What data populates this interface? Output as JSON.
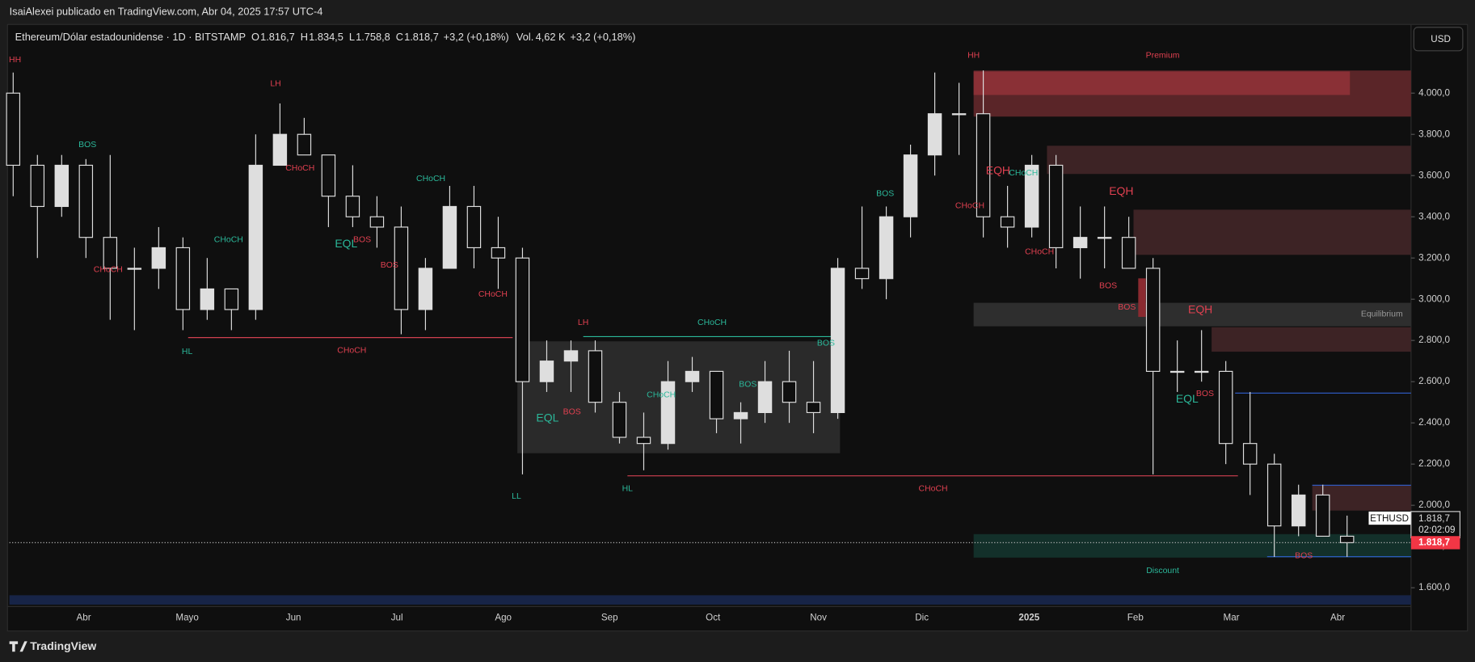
{
  "header": {
    "publisher": "IsaiAlexei publicado en TradingView.com, Abr 04, 2025 17:57 UTC-4",
    "brand": "TradingView"
  },
  "chart_data": {
    "type": "candlestick",
    "symbol": "Ethereum/Dólar estadounidense · 1D · BITSTAMP",
    "legend": [
      {
        "key": "O",
        "value": 1816.7,
        "label": "1.816,7"
      },
      {
        "key": "H",
        "value": 1834.5,
        "label": "1.834,5"
      },
      {
        "key": "L",
        "value": 1758.8,
        "label": "1.758,8"
      },
      {
        "key": "C",
        "value": 1818.7,
        "label": "1.818,7"
      }
    ],
    "change": {
      "value": 3.2,
      "label": "+3,2"
    },
    "change_pct": {
      "value": 0.18,
      "label": "(+0,18%)"
    },
    "volume": {
      "key": "Vol.",
      "value": 4620,
      "label": "4,62 K"
    },
    "volume_change": {
      "value": 3.2,
      "label": "+3,2"
    },
    "volume_change_pct": {
      "value": 0.18,
      "label": "(+0,18%)"
    },
    "currency": "USD",
    "ticker": "ETHUSD",
    "last_price": {
      "value": 1818.7,
      "label": "1.818,7"
    },
    "countdown": "02:02:09",
    "color": "#dedede",
    "categories": [
      "Abr",
      "Mayo",
      "Jun",
      "Jul",
      "Ago",
      "Sep",
      "Oct",
      "Nov",
      "Dic",
      "2025",
      "Feb",
      "Mar",
      "Abr"
    ],
    "open": [
      4000,
      3650,
      3450,
      3650,
      3300,
      3150,
      3150,
      3250,
      2950,
      3050,
      2950,
      3650,
      3800,
      3700,
      3500,
      3400,
      3350,
      2950,
      3150,
      3450,
      3250,
      3200,
      2600,
      2700,
      2750,
      2500,
      2330,
      2300,
      2600,
      2650,
      2420,
      2450,
      2600,
      2500,
      2450,
      3150,
      3100,
      3400,
      3700,
      3900,
      3900,
      3400,
      3350,
      3650,
      3250,
      3300,
      3300,
      3150,
      2650,
      2650,
      2650,
      2300,
      2200,
      1900,
      2050,
      1850
    ],
    "high": [
      4100,
      3700,
      3700,
      3680,
      3700,
      3250,
      3350,
      3300,
      3200,
      3050,
      3800,
      3950,
      3880,
      3700,
      3650,
      3500,
      3450,
      3200,
      3550,
      3550,
      3400,
      3250,
      2800,
      2800,
      2800,
      2550,
      2450,
      2700,
      2720,
      2650,
      2500,
      2700,
      2750,
      2700,
      3200,
      3450,
      3450,
      3750,
      4100,
      4050,
      4110,
      3550,
      3700,
      3700,
      3450,
      3450,
      3400,
      3200,
      2800,
      2850,
      2700,
      2550,
      2250,
      2100,
      2100,
      1950
    ],
    "low": [
      3500,
      3200,
      3400,
      3200,
      2900,
      2850,
      3050,
      2850,
      2900,
      2850,
      2900,
      3650,
      3700,
      3350,
      3350,
      3250,
      2830,
      2850,
      3150,
      3150,
      3050,
      2150,
      2550,
      2550,
      2450,
      2300,
      2170,
      2270,
      2550,
      2350,
      2300,
      2400,
      2400,
      2350,
      2420,
      3050,
      3000,
      3300,
      3600,
      3700,
      3300,
      3250,
      3300,
      3150,
      3100,
      3150,
      3150,
      2150,
      2550,
      2600,
      2200,
      2050,
      1750,
      1850,
      1850,
      1750
    ],
    "close": [
      3650,
      3450,
      3650,
      3300,
      3150,
      3150,
      3250,
      2950,
      3050,
      2950,
      3650,
      3800,
      3700,
      3500,
      3400,
      3350,
      2950,
      3150,
      3450,
      3250,
      3200,
      2600,
      2700,
      2750,
      2500,
      2330,
      2300,
      2600,
      2650,
      2420,
      2450,
      2600,
      2500,
      2450,
      3150,
      3100,
      3400,
      3700,
      3900,
      3900,
      3400,
      3350,
      3650,
      3250,
      3300,
      3300,
      3150,
      2650,
      2650,
      2650,
      2300,
      2200,
      1900,
      2050,
      1850,
      1818.7
    ],
    "ylim": [
      1404,
      4315
    ],
    "yticks": [
      {
        "value": 4000,
        "label": "4.000,0"
      },
      {
        "value": 3800,
        "label": "3.800,0"
      },
      {
        "value": 3600,
        "label": "3.600,0"
      },
      {
        "value": 3400,
        "label": "3.400,0"
      },
      {
        "value": 3200,
        "label": "3.200,0"
      },
      {
        "value": 3000,
        "label": "3.000,0"
      },
      {
        "value": 2800,
        "label": "2.800,0"
      },
      {
        "value": 2600,
        "label": "2.600,0"
      },
      {
        "value": 2400,
        "label": "2.400,0"
      },
      {
        "value": 2200,
        "label": "2.200,0"
      },
      {
        "value": 2000,
        "label": "2.000,0"
      },
      {
        "value": 1800,
        "label": "1.800,0"
      },
      {
        "value": 1600,
        "label": "1.600,0"
      }
    ],
    "annotations": [
      {
        "text": "HH",
        "color": "#e04050"
      },
      {
        "text": "LH",
        "color": "#e04050"
      },
      {
        "text": "BOS",
        "color": "#2bb89a"
      },
      {
        "text": "CHoCH",
        "color": "#e04050"
      },
      {
        "text": "CHoCH",
        "color": "#2bb89a"
      },
      {
        "text": "CHoCH",
        "color": "#2bb89a"
      },
      {
        "text": "EQL",
        "color": "#2bb89a"
      },
      {
        "text": "BOS",
        "color": "#e04050"
      },
      {
        "text": "BOS",
        "color": "#e04050"
      },
      {
        "text": "CHoCH",
        "color": "#e04050"
      },
      {
        "text": "CHoCH",
        "color": "#e04050"
      },
      {
        "text": "HL",
        "color": "#2bb89a"
      },
      {
        "text": "CHoCH",
        "color": "#e04050"
      },
      {
        "text": "LL",
        "color": "#2bb89a"
      },
      {
        "text": "LH",
        "color": "#e04050"
      },
      {
        "text": "CHoCH",
        "color": "#2bb89a"
      },
      {
        "text": "BOS",
        "color": "#2bb89a"
      },
      {
        "text": "EQL",
        "color": "#2bb89a"
      },
      {
        "text": "BOS",
        "color": "#e04050"
      },
      {
        "text": "CHoCH",
        "color": "#2bb89a"
      },
      {
        "text": "BOS",
        "color": "#2bb89a"
      },
      {
        "text": "HL",
        "color": "#2bb89a"
      },
      {
        "text": "CHoCH",
        "color": "#e04050"
      },
      {
        "text": "BOS",
        "color": "#2bb89a"
      },
      {
        "text": "HH",
        "color": "#e04050"
      },
      {
        "text": "Premium",
        "color": "#e04050"
      },
      {
        "text": "EQH",
        "color": "#e04050"
      },
      {
        "text": "CHoCH",
        "color": "#2bb89a"
      },
      {
        "text": "CHoCH",
        "color": "#e04050"
      },
      {
        "text": "EQH",
        "color": "#e04050"
      },
      {
        "text": "CHoCH",
        "color": "#e04050"
      },
      {
        "text": "BOS",
        "color": "#e04050"
      },
      {
        "text": "BOS",
        "color": "#e04050"
      },
      {
        "text": "EQH",
        "color": "#e04050"
      },
      {
        "text": "Equilibrium",
        "color": "#9a9a9a"
      },
      {
        "text": "BOS",
        "color": "#e04050"
      },
      {
        "text": "EQL",
        "color": "#2bb89a"
      },
      {
        "text": "Discount",
        "color": "#2bb89a"
      },
      {
        "text": "BOS",
        "color": "#e04050"
      }
    ]
  }
}
